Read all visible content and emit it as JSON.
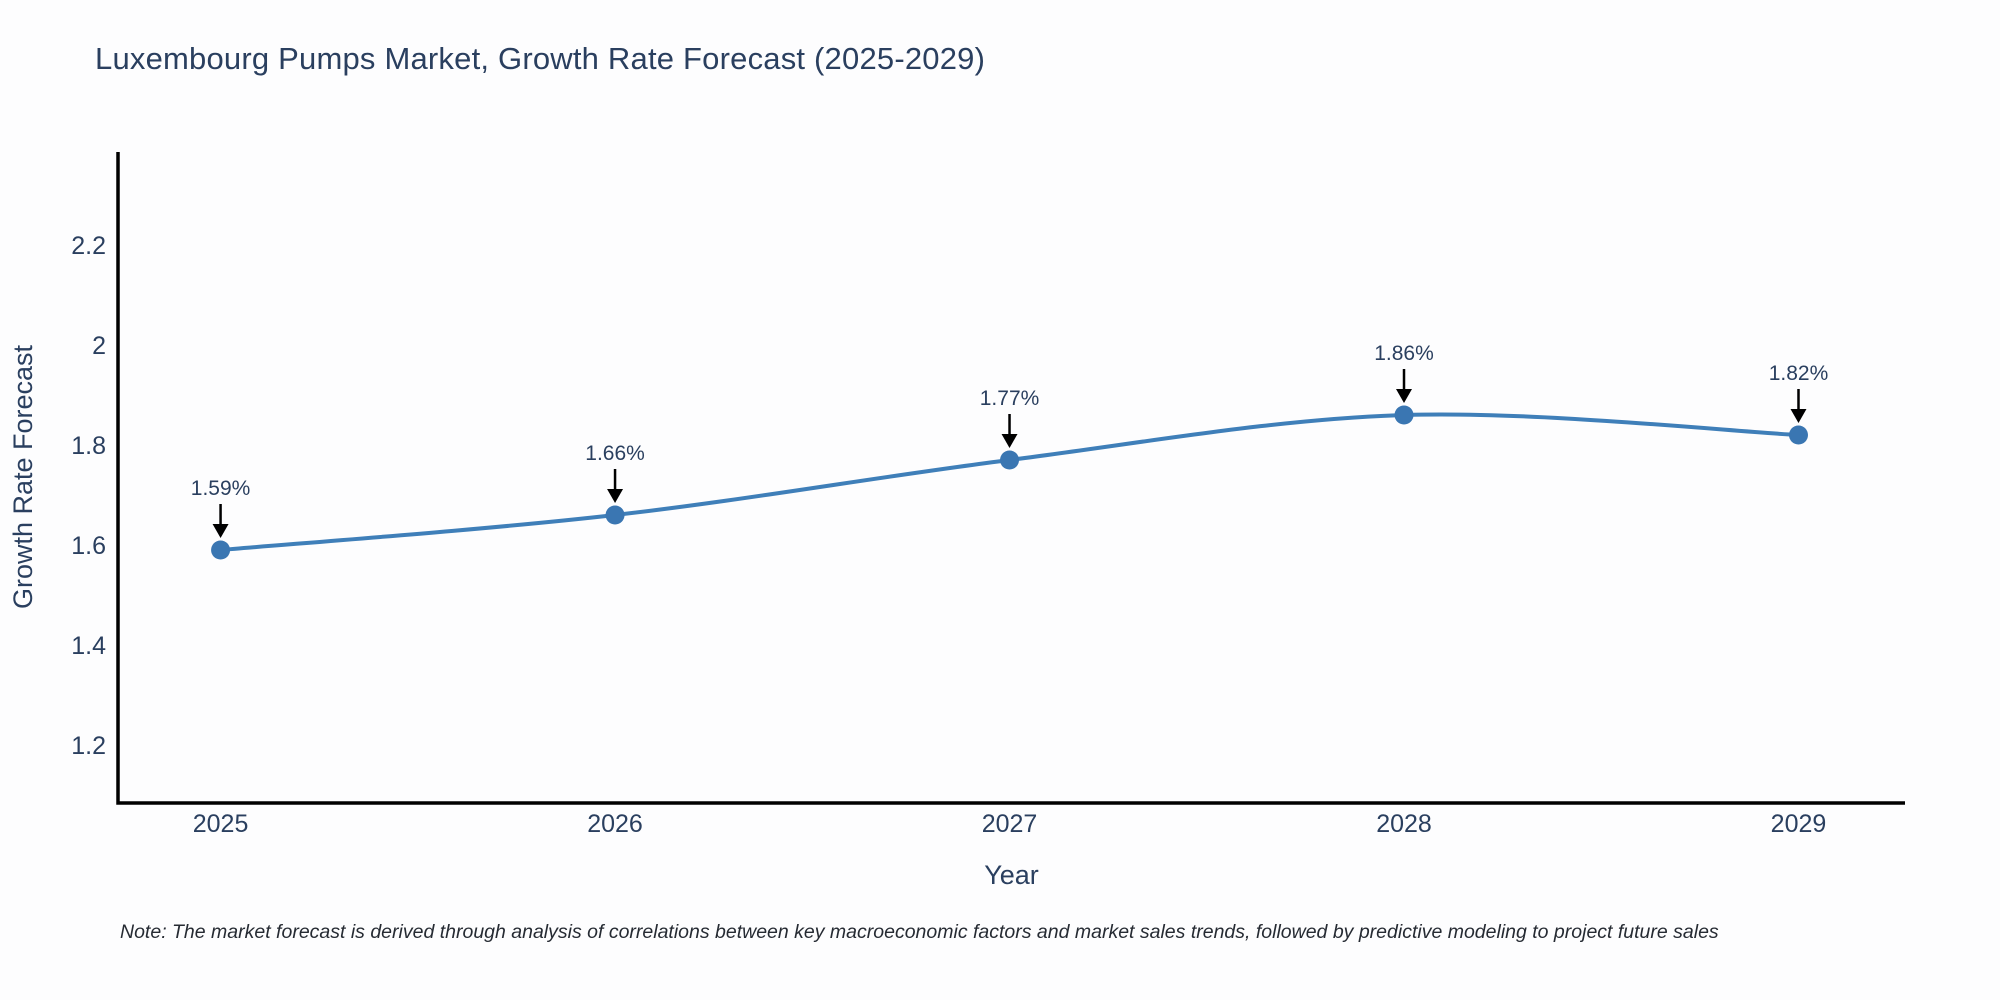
{
  "title": "Luxembourg Pumps Market, Growth Rate Forecast (2025-2029)",
  "note": "Note: The market forecast is derived through analysis of correlations between key macroeconomic factors and market sales trends, followed by predictive modeling to project future sales",
  "chart_data": {
    "type": "line",
    "title": "Luxembourg Pumps Market, Growth Rate Forecast (2025-2029)",
    "xlabel": "Year",
    "ylabel": "Growth Rate Forecast",
    "x": [
      2025,
      2026,
      2027,
      2028,
      2029
    ],
    "series": [
      {
        "name": "Growth Rate Forecast",
        "values": [
          1.59,
          1.66,
          1.77,
          1.86,
          1.82
        ]
      }
    ],
    "point_labels": [
      "1.59%",
      "1.66%",
      "1.77%",
      "1.86%",
      "1.82%"
    ],
    "xticks": [
      "2025",
      "2026",
      "2027",
      "2028",
      "2029"
    ],
    "yticks": [
      "1.2",
      "1.4",
      "1.6",
      "1.8",
      "2",
      "2.2"
    ],
    "ytick_values": [
      1.2,
      1.4,
      1.6,
      1.8,
      2.0,
      2.2
    ],
    "ylim": [
      1.084,
      2.386
    ],
    "xlim": [
      2024.74,
      2029.27
    ],
    "grid": false,
    "legend": false,
    "line_shape": "spline",
    "colors": {
      "line": "#3f7fb9",
      "marker": "#3a76b2",
      "arrow": "#000000",
      "axis": "#000000",
      "text": "#2a3f5f"
    }
  }
}
